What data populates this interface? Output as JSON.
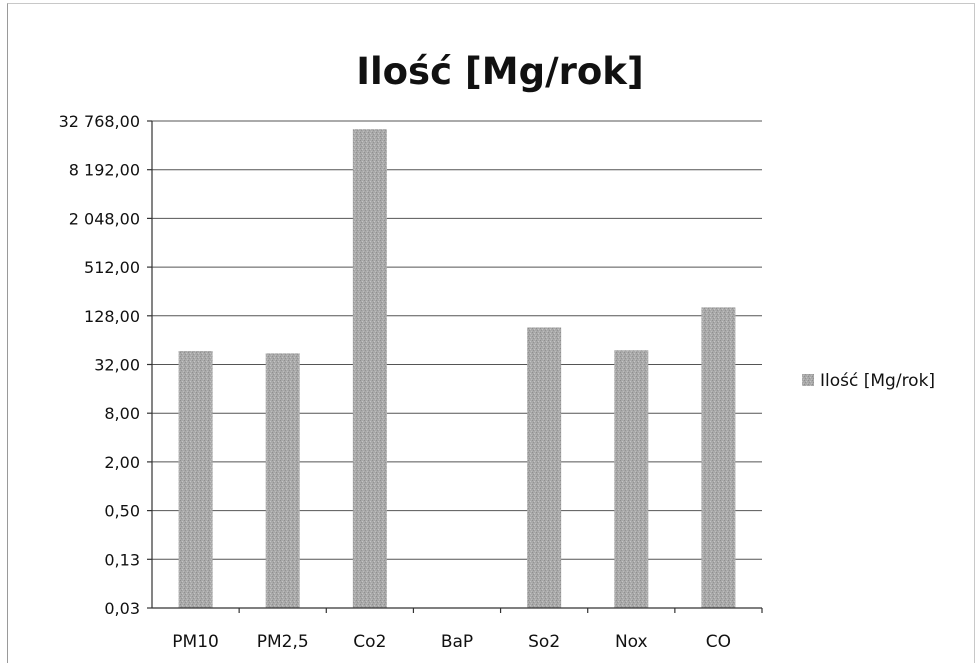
{
  "chart_data": {
    "type": "bar",
    "title": "Ilość [Mg/rok]",
    "categories": [
      "PM10",
      "PM2,5",
      "Co2",
      "BaP",
      "So2",
      "Nox",
      "CO"
    ],
    "series": [
      {
        "name": "Ilość [Mg/rok]",
        "values": [
          47,
          44,
          26000,
          0.02,
          92,
          48,
          163
        ],
        "color": "#a9a9a9"
      }
    ],
    "y_scale": "log2",
    "ylim": [
      0.03125,
      32768
    ],
    "y_ticks": [
      0.03125,
      0.125,
      0.5,
      2,
      8,
      32,
      128,
      512,
      2048,
      8192,
      32768
    ],
    "y_tick_labels": [
      "0,03",
      "0,13",
      "0,50",
      "2,00",
      "8,00",
      "32,00",
      "128,00",
      "512,00",
      "2 048,00",
      "8 192,00",
      "32 768,00"
    ],
    "grid": true,
    "legend_position": "right"
  }
}
